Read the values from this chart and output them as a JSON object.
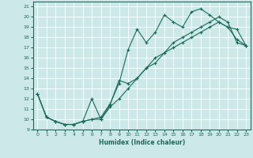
{
  "xlabel": "Humidex (Indice chaleur)",
  "bg_color": "#cce8e8",
  "line_color": "#1a6b5a",
  "grid_color": "#ffffff",
  "xlim": [
    -0.5,
    23.5
  ],
  "ylim": [
    9,
    21.5
  ],
  "yticks": [
    9,
    10,
    11,
    12,
    13,
    14,
    15,
    16,
    17,
    18,
    19,
    20,
    21
  ],
  "xticks": [
    0,
    1,
    2,
    3,
    4,
    5,
    6,
    7,
    8,
    9,
    10,
    11,
    12,
    13,
    14,
    15,
    16,
    17,
    18,
    19,
    20,
    21,
    22,
    23
  ],
  "line1_x": [
    0,
    1,
    2,
    3,
    4,
    5,
    6,
    7,
    8,
    9,
    10,
    11,
    12,
    13,
    14,
    15,
    16,
    17,
    18,
    19,
    20,
    21,
    22,
    23
  ],
  "line1_y": [
    12.5,
    10.2,
    9.8,
    9.5,
    9.5,
    9.8,
    10.0,
    10.2,
    11.5,
    13.5,
    16.8,
    18.8,
    17.5,
    18.5,
    20.2,
    19.5,
    19.0,
    20.5,
    20.8,
    20.2,
    19.5,
    19.0,
    18.8,
    17.2
  ],
  "line2_x": [
    0,
    1,
    2,
    3,
    4,
    5,
    6,
    7,
    8,
    9,
    10,
    11,
    12,
    13,
    14,
    15,
    16,
    17,
    18,
    19,
    20,
    21,
    22,
    23
  ],
  "line2_y": [
    12.5,
    10.2,
    9.8,
    9.5,
    9.5,
    9.8,
    12.0,
    10.0,
    11.4,
    13.8,
    13.5,
    14.0,
    15.0,
    15.5,
    16.5,
    17.5,
    18.0,
    18.5,
    19.0,
    19.5,
    20.0,
    19.5,
    17.5,
    17.2
  ],
  "line3_x": [
    0,
    1,
    2,
    3,
    4,
    5,
    6,
    7,
    8,
    9,
    10,
    11,
    12,
    13,
    14,
    15,
    16,
    17,
    18,
    19,
    20,
    21,
    22,
    23
  ],
  "line3_y": [
    12.5,
    10.2,
    9.8,
    9.5,
    9.5,
    9.8,
    10.0,
    10.0,
    11.2,
    12.0,
    13.0,
    14.0,
    15.0,
    16.0,
    16.5,
    17.0,
    17.5,
    18.0,
    18.5,
    19.0,
    19.5,
    19.0,
    17.8,
    17.2
  ]
}
